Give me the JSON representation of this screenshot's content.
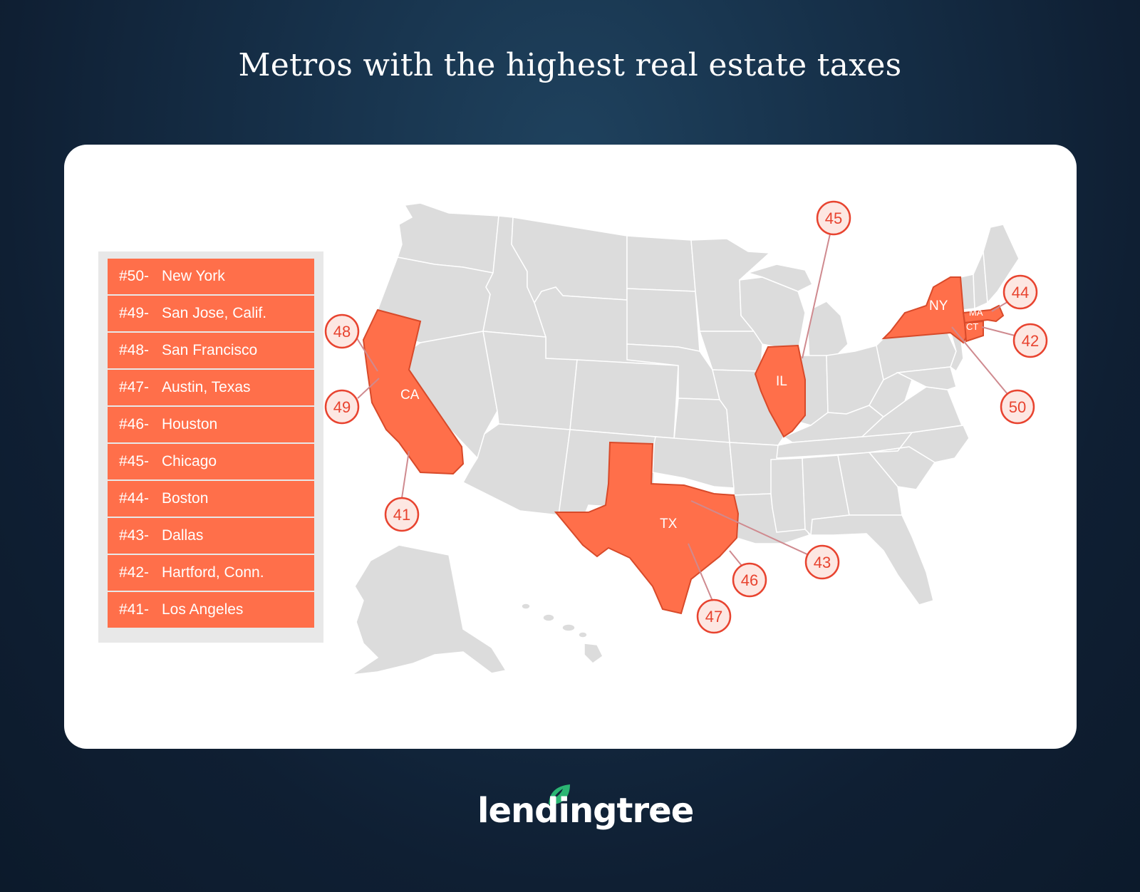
{
  "title": "Metros with the highest real estate taxes",
  "legend": [
    {
      "rank": "#50-",
      "metro": "New York"
    },
    {
      "rank": "#49-",
      "metro": "San Jose, Calif."
    },
    {
      "rank": "#48-",
      "metro": "San Francisco"
    },
    {
      "rank": "#47-",
      "metro": "Austin, Texas"
    },
    {
      "rank": "#46-",
      "metro": "Houston"
    },
    {
      "rank": "#45-",
      "metro": "Chicago"
    },
    {
      "rank": "#44-",
      "metro": "Boston"
    },
    {
      "rank": "#43-",
      "metro": "Dallas"
    },
    {
      "rank": "#42-",
      "metro": "Hartford, Conn."
    },
    {
      "rank": "#41-",
      "metro": "Los Angeles"
    }
  ],
  "map": {
    "highlighted_states": [
      "CA",
      "TX",
      "IL",
      "NY",
      "MA",
      "CT"
    ],
    "state_labels": {
      "CA": "CA",
      "TX": "TX",
      "IL": "IL",
      "NY": "NY",
      "MA": "MA",
      "CT": "CT"
    },
    "markers": [
      "45",
      "48",
      "49",
      "41",
      "43",
      "46",
      "47",
      "44",
      "42",
      "50"
    ],
    "highlight_color": "#ff6f4a",
    "base_color": "#dcdcdc"
  },
  "brand": {
    "name": "lendingtree",
    "registered": "®",
    "leaf_color": "#2bb673"
  },
  "colors": {
    "background": "#163049",
    "card": "#ffffff",
    "legend_row": "#ff6f4a",
    "marker_stroke": "#e8432f"
  }
}
